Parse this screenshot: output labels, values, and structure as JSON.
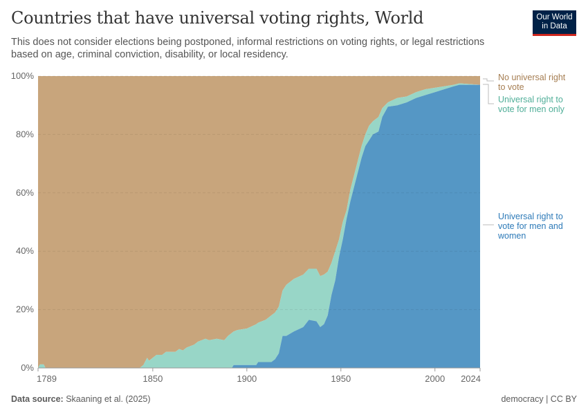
{
  "title": "Countries that have universal voting rights, World",
  "subtitle": "This does not consider elections being postponed, informal restrictions on voting rights, or legal restrictions based on age, criminal conviction, disability, or local residency.",
  "logo": "Our World in Data",
  "footer": {
    "source_label": "Data source:",
    "source": "Skaaning et al. (2025)",
    "license": "democracy | CC BY"
  },
  "chart_data": {
    "type": "area",
    "stacked": "percent",
    "x_ticks": [
      "1789",
      "1850",
      "1900",
      "1950",
      "2000",
      "2024"
    ],
    "y_ticks": [
      "0%",
      "20%",
      "40%",
      "60%",
      "80%",
      "100%"
    ],
    "xlim": [
      1789,
      2024
    ],
    "ylim": [
      0,
      100
    ],
    "grid": "horizontal dashed",
    "legend": "right, inline labels",
    "years": [
      1789,
      1790,
      1792,
      1793,
      1843,
      1845,
      1847,
      1848,
      1850,
      1852,
      1855,
      1857,
      1862,
      1864,
      1866,
      1868,
      1870,
      1872,
      1874,
      1878,
      1880,
      1884,
      1888,
      1890,
      1892,
      1893,
      1895,
      1900,
      1905,
      1906,
      1910,
      1913,
      1915,
      1917,
      1919,
      1921,
      1925,
      1930,
      1933,
      1937,
      1939,
      1941,
      1943,
      1945,
      1947,
      1949,
      1951,
      1953,
      1955,
      1957,
      1959,
      1961,
      1963,
      1965,
      1967,
      1970,
      1972,
      1975,
      1980,
      1985,
      1990,
      1995,
      2000,
      2005,
      2010,
      2013,
      2024
    ],
    "series": [
      {
        "name": "Universal right to vote for men and women",
        "color": "#5597c5",
        "values": [
          0,
          0,
          0,
          0,
          0,
          0,
          0,
          0,
          0,
          0,
          0,
          0,
          0,
          0,
          0,
          0,
          0,
          0,
          0,
          0,
          0,
          0,
          0,
          0,
          0,
          1,
          1,
          1,
          1,
          2,
          2,
          2,
          3,
          5,
          11,
          11,
          12.5,
          14,
          16.5,
          16,
          14,
          15,
          18,
          25,
          30,
          38,
          44,
          51,
          57,
          62,
          67,
          72,
          76,
          78,
          80,
          81,
          86,
          89.5,
          90,
          91,
          92.5,
          93.5,
          94.5,
          95.5,
          96.5,
          97,
          97
        ]
      },
      {
        "name": "Universal right to vote for men only",
        "color": "#98d6c7",
        "values": [
          0,
          1.2,
          1.2,
          0,
          0,
          1,
          3.5,
          2.5,
          3.5,
          4.5,
          4.5,
          5.5,
          5.5,
          6.5,
          6,
          7,
          7.5,
          8,
          9,
          10,
          9.5,
          10,
          9.5,
          11,
          12,
          11.5,
          12,
          12.5,
          14,
          13.5,
          14.5,
          16,
          16,
          16,
          15.5,
          17.5,
          18,
          18,
          17.5,
          18,
          17.5,
          17,
          15,
          11,
          10,
          6,
          6,
          3,
          4,
          4,
          4,
          4,
          4,
          5,
          4.5,
          5,
          3,
          1.5,
          2.5,
          2,
          2,
          2,
          1.5,
          1,
          0.5,
          0.5,
          0
        ]
      },
      {
        "name": "No universal right to vote",
        "color": "#c8a57c",
        "remainder": true
      }
    ],
    "labels": {
      "none": "No universal right to vote",
      "men": "Universal right to vote for men only",
      "both": "Universal right to vote for men and women"
    }
  }
}
